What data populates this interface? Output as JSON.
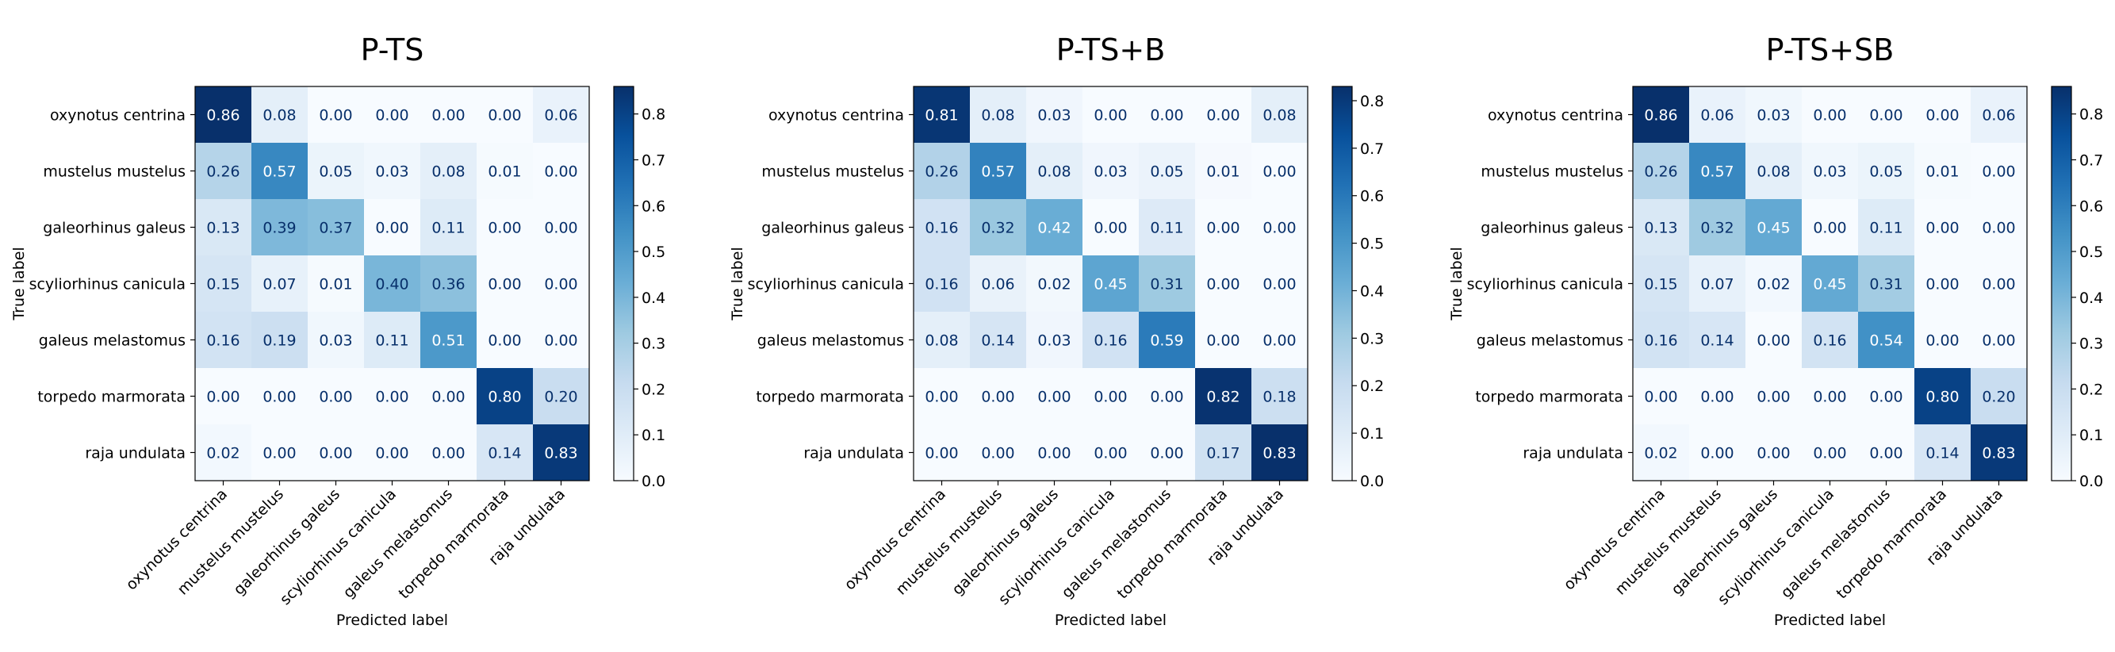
{
  "chart_data": [
    {
      "type": "heatmap",
      "title": "P-TS",
      "xlabel": "Predicted label",
      "ylabel": "True label",
      "x_categories": [
        "oxynotus centrina",
        "mustelus mustelus",
        "galeorhinus galeus",
        "scyliorhinus canicula",
        "galeus melastomus",
        "torpedo marmorata",
        "raja undulata"
      ],
      "y_categories": [
        "oxynotus centrina",
        "mustelus mustelus",
        "galeorhinus galeus",
        "scyliorhinus canicula",
        "galeus melastomus",
        "torpedo marmorata",
        "raja undulata"
      ],
      "values": [
        [
          "0.86",
          "0.08",
          "0.00",
          "0.00",
          "0.00",
          "0.00",
          "0.06"
        ],
        [
          "0.26",
          "0.57",
          "0.05",
          "0.03",
          "0.08",
          "0.01",
          "0.00"
        ],
        [
          "0.13",
          "0.39",
          "0.37",
          "0.00",
          "0.11",
          "0.00",
          "0.00"
        ],
        [
          "0.15",
          "0.07",
          "0.01",
          "0.40",
          "0.36",
          "0.00",
          "0.00"
        ],
        [
          "0.16",
          "0.19",
          "0.03",
          "0.11",
          "0.51",
          "0.00",
          "0.00"
        ],
        [
          "0.00",
          "0.00",
          "0.00",
          "0.00",
          "0.00",
          "0.80",
          "0.20"
        ],
        [
          "0.02",
          "0.00",
          "0.00",
          "0.00",
          "0.00",
          "0.14",
          "0.83"
        ]
      ],
      "colorbar_range": [
        0,
        0.86
      ],
      "colorbar_ticks": [
        "0.0",
        "0.1",
        "0.2",
        "0.3",
        "0.4",
        "0.5",
        "0.6",
        "0.7",
        "0.8"
      ],
      "colormap": "Blues",
      "grid": false
    },
    {
      "type": "heatmap",
      "title": "P-TS+B",
      "xlabel": "Predicted label",
      "ylabel": "True label",
      "x_categories": [
        "oxynotus centrina",
        "mustelus mustelus",
        "galeorhinus galeus",
        "scyliorhinus canicula",
        "galeus melastomus",
        "torpedo marmorata",
        "raja undulata"
      ],
      "y_categories": [
        "oxynotus centrina",
        "mustelus mustelus",
        "galeorhinus galeus",
        "scyliorhinus canicula",
        "galeus melastomus",
        "torpedo marmorata",
        "raja undulata"
      ],
      "values": [
        [
          "0.81",
          "0.08",
          "0.03",
          "0.00",
          "0.00",
          "0.00",
          "0.08"
        ],
        [
          "0.26",
          "0.57",
          "0.08",
          "0.03",
          "0.05",
          "0.01",
          "0.00"
        ],
        [
          "0.16",
          "0.32",
          "0.42",
          "0.00",
          "0.11",
          "0.00",
          "0.00"
        ],
        [
          "0.16",
          "0.06",
          "0.02",
          "0.45",
          "0.31",
          "0.00",
          "0.00"
        ],
        [
          "0.08",
          "0.14",
          "0.03",
          "0.16",
          "0.59",
          "0.00",
          "0.00"
        ],
        [
          "0.00",
          "0.00",
          "0.00",
          "0.00",
          "0.00",
          "0.82",
          "0.18"
        ],
        [
          "0.00",
          "0.00",
          "0.00",
          "0.00",
          "0.00",
          "0.17",
          "0.83"
        ]
      ],
      "colorbar_range": [
        0,
        0.83
      ],
      "colorbar_ticks": [
        "0.0",
        "0.1",
        "0.2",
        "0.3",
        "0.4",
        "0.5",
        "0.6",
        "0.7",
        "0.8"
      ],
      "colormap": "Blues",
      "grid": false
    },
    {
      "type": "heatmap",
      "title": "P-TS+SB",
      "xlabel": "Predicted label",
      "ylabel": "True label",
      "x_categories": [
        "oxynotus centrina",
        "mustelus mustelus",
        "galeorhinus galeus",
        "scyliorhinus canicula",
        "galeus melastomus",
        "torpedo marmorata",
        "raja undulata"
      ],
      "y_categories": [
        "oxynotus centrina",
        "mustelus mustelus",
        "galeorhinus galeus",
        "scyliorhinus canicula",
        "galeus melastomus",
        "torpedo marmorata",
        "raja undulata"
      ],
      "values": [
        [
          "0.86",
          "0.06",
          "0.03",
          "0.00",
          "0.00",
          "0.00",
          "0.06"
        ],
        [
          "0.26",
          "0.57",
          "0.08",
          "0.03",
          "0.05",
          "0.01",
          "0.00"
        ],
        [
          "0.13",
          "0.32",
          "0.45",
          "0.00",
          "0.11",
          "0.00",
          "0.00"
        ],
        [
          "0.15",
          "0.07",
          "0.02",
          "0.45",
          "0.31",
          "0.00",
          "0.00"
        ],
        [
          "0.16",
          "0.14",
          "0.00",
          "0.16",
          "0.54",
          "0.00",
          "0.00"
        ],
        [
          "0.00",
          "0.00",
          "0.00",
          "0.00",
          "0.00",
          "0.80",
          "0.20"
        ],
        [
          "0.02",
          "0.00",
          "0.00",
          "0.00",
          "0.00",
          "0.14",
          "0.83"
        ]
      ],
      "colorbar_range": [
        0,
        0.86
      ],
      "colorbar_ticks": [
        "0.0",
        "0.1",
        "0.2",
        "0.3",
        "0.4",
        "0.5",
        "0.6",
        "0.7",
        "0.8"
      ],
      "colormap": "Blues",
      "grid": false
    }
  ]
}
